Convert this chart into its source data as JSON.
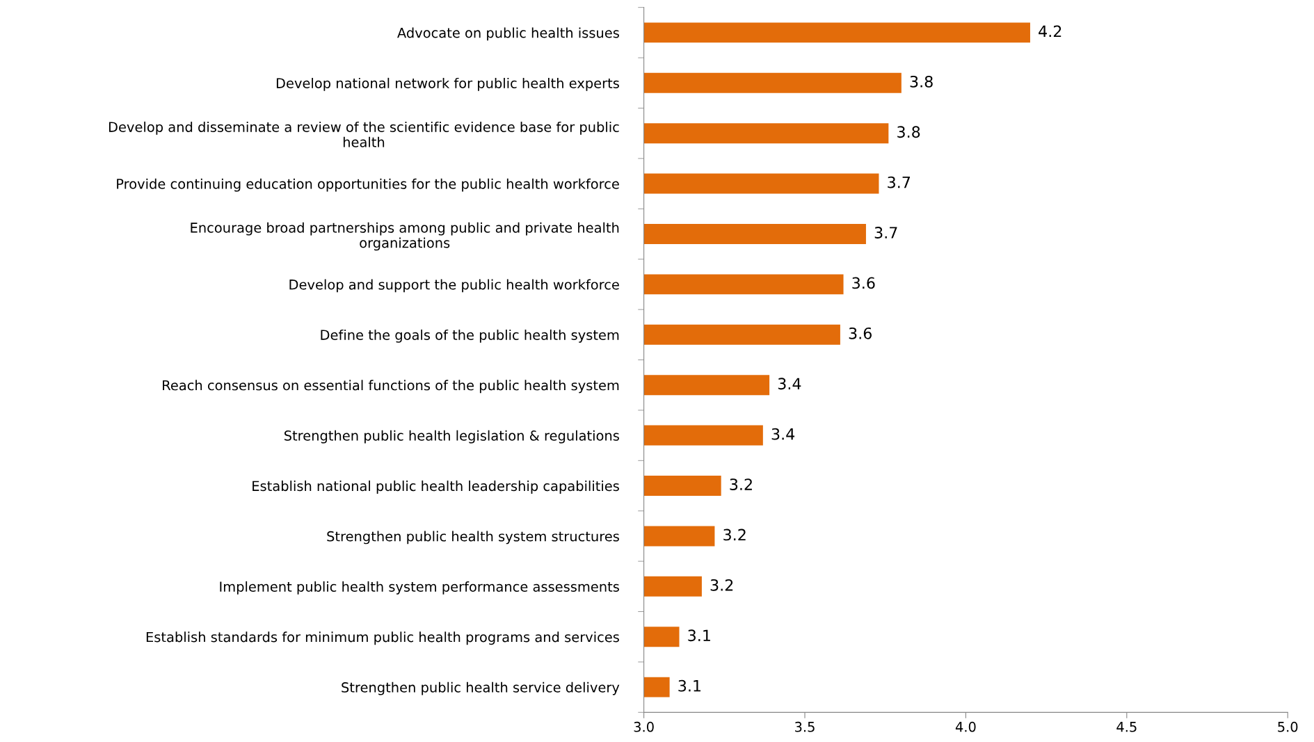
{
  "chart_data": {
    "type": "bar",
    "orientation": "horizontal",
    "categories": [
      "Advocate on public health issues",
      "Develop national network for public health experts",
      "Develop and disseminate a review of the scientific evidence base for public\nhealth",
      "Provide continuing education opportunities for the public health workforce",
      "Encourage broad partnerships among public and private health\norganizations",
      "Develop and support the public health workforce",
      "Define the goals of the public health system",
      "Reach consensus on essential functions of the public health system",
      "Strengthen public health legislation & regulations",
      "Establish national public health leadership capabilities",
      "Strengthen public health system structures",
      "Implement public health system performance assessments",
      "Establish standards for minimum public health programs and services",
      "Strengthen public health service delivery"
    ],
    "values": [
      4.2,
      3.8,
      3.76,
      3.73,
      3.69,
      3.62,
      3.61,
      3.39,
      3.37,
      3.24,
      3.22,
      3.18,
      3.11,
      3.08
    ],
    "value_labels": [
      "4.2",
      "3.8",
      "3.8",
      "3.7",
      "3.7",
      "3.6",
      "3.6",
      "3.4",
      "3.4",
      "3.2",
      "3.2",
      "3.2",
      "3.1",
      "3.1"
    ],
    "color": "#e36c0a",
    "xlim": [
      3.0,
      5.0
    ],
    "xticks": [
      {
        "value": 3.0,
        "label": "3.0"
      },
      {
        "value": 3.5,
        "label": "3.5"
      },
      {
        "value": 4.0,
        "label": "4.0"
      },
      {
        "value": 4.5,
        "label": "4.5"
      },
      {
        "value": 5.0,
        "label": "5.0"
      }
    ],
    "grid": false,
    "legend": false
  }
}
